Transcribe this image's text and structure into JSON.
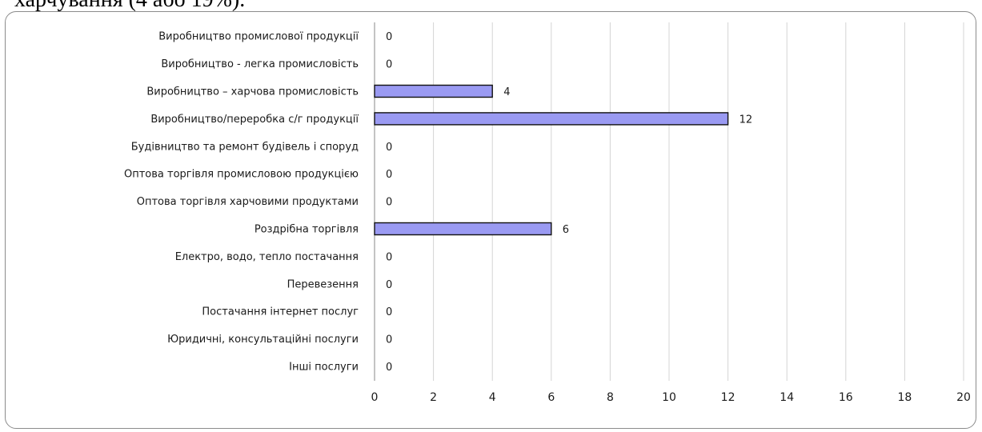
{
  "header_fragment": "харчування (4 або 19%).",
  "colors": {
    "bar_fill": "#9a9af2",
    "bar_stroke": "#111111",
    "grid": "#d4d4d4"
  },
  "chart_data": {
    "type": "bar",
    "orientation": "horizontal",
    "categories": [
      "Виробництво промислової продукції",
      "Виробництво - легка промисловість",
      "Виробництво – харчова промисловість",
      "Виробництво/переробка с/г продукції",
      "Будівництво та ремонт будівель і споруд",
      "Оптова торгівля промисловою продукцією",
      "Оптова торгівля харчовими продуктами",
      "Роздрібна торгівля",
      "Електро, водо, тепло постачання",
      "Перевезення",
      "Постачання інтернет послуг",
      "Юридичні, консультаційні послуги",
      "Інші послуги"
    ],
    "values": [
      0,
      0,
      4,
      12,
      0,
      0,
      0,
      6,
      0,
      0,
      0,
      0,
      0
    ],
    "value_labels": [
      "0",
      "0",
      "4",
      "12",
      "0",
      "0",
      "0",
      "6",
      "0",
      "0",
      "0",
      "0",
      "0"
    ],
    "xlim": [
      0,
      20
    ],
    "xticks": [
      "0",
      "2",
      "4",
      "6",
      "8",
      "10",
      "12",
      "14",
      "16",
      "18",
      "20"
    ],
    "grid": true,
    "legend": "none"
  }
}
